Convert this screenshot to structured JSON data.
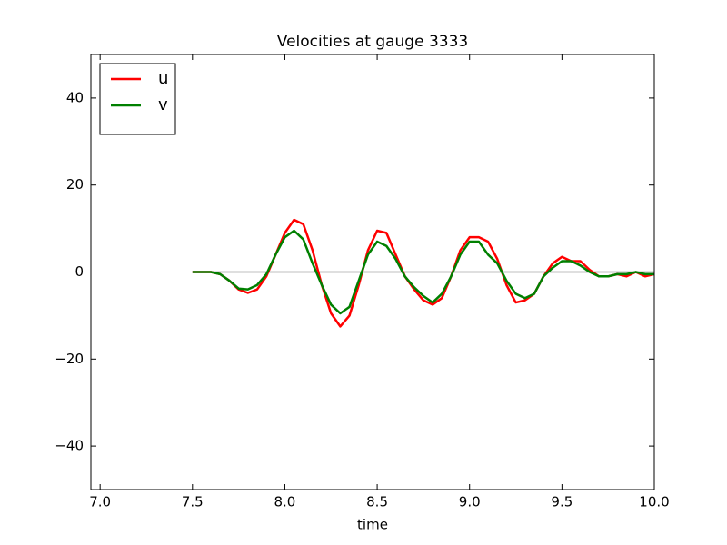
{
  "chart_data": {
    "type": "line",
    "title": "Velocities at gauge 3333",
    "xlabel": "time",
    "x": [
      7.5,
      7.55,
      7.6,
      7.65,
      7.7,
      7.75,
      7.8,
      7.85,
      7.9,
      7.95,
      8.0,
      8.05,
      8.1,
      8.15,
      8.2,
      8.25,
      8.3,
      8.35,
      8.4,
      8.45,
      8.5,
      8.55,
      8.6,
      8.65,
      8.7,
      8.75,
      8.8,
      8.85,
      8.9,
      8.95,
      9.0,
      9.05,
      9.1,
      9.15,
      9.2,
      9.25,
      9.3,
      9.35,
      9.4,
      9.45,
      9.5,
      9.55,
      9.6,
      9.65,
      9.7,
      9.75,
      9.8,
      9.85,
      9.9,
      9.95,
      10.0
    ],
    "series": [
      {
        "name": "u",
        "color": "#ff0000",
        "values": [
          0,
          0,
          0,
          -0.5,
          -2,
          -4,
          -4.8,
          -4,
          -1,
          4,
          9,
          12,
          11,
          5,
          -3,
          -9.5,
          -12.5,
          -10,
          -3,
          5,
          9.5,
          9,
          4,
          -1,
          -4,
          -6.5,
          -7.5,
          -6,
          -1,
          5,
          8,
          8,
          7,
          3,
          -3,
          -7,
          -6.5,
          -5,
          -1,
          2,
          3.5,
          2.5,
          2.5,
          0.5,
          -1,
          -1,
          -0.5,
          -1,
          0,
          -1,
          -0.5
        ]
      },
      {
        "name": "v",
        "color": "#008000",
        "values": [
          0,
          0,
          0,
          -0.5,
          -2,
          -3.8,
          -4,
          -3,
          -0.5,
          4,
          8,
          9.5,
          7.5,
          2,
          -3,
          -7.5,
          -9.5,
          -8,
          -2,
          4,
          7,
          6,
          3,
          -1,
          -3.5,
          -5.5,
          -7,
          -5,
          -1,
          4,
          7,
          7,
          4,
          2,
          -2,
          -5,
          -6,
          -5,
          -1,
          1,
          2.5,
          2.5,
          1.5,
          0,
          -1,
          -1,
          -0.5,
          -0.5,
          0,
          -0.5,
          -0.5
        ]
      }
    ],
    "hlines": [
      {
        "y": 0,
        "xmin": 7.5,
        "xmax": 10.0,
        "color": "#000000"
      }
    ],
    "xlim": [
      6.95,
      10.0
    ],
    "xticks": [
      {
        "value": 7.0,
        "label": "7.0"
      },
      {
        "value": 7.5,
        "label": "7.5"
      },
      {
        "value": 8.0,
        "label": "8.0"
      },
      {
        "value": 8.5,
        "label": "8.5"
      },
      {
        "value": 9.0,
        "label": "9.0"
      },
      {
        "value": 9.5,
        "label": "9.5"
      },
      {
        "value": 10.0,
        "label": "10.0"
      }
    ],
    "ylim": [
      -50,
      50
    ],
    "yticks": [
      {
        "value": -40,
        "label": "−40"
      },
      {
        "value": -20,
        "label": "−20"
      },
      0,
      20,
      40
    ],
    "grid": false,
    "legend": "upper left"
  }
}
